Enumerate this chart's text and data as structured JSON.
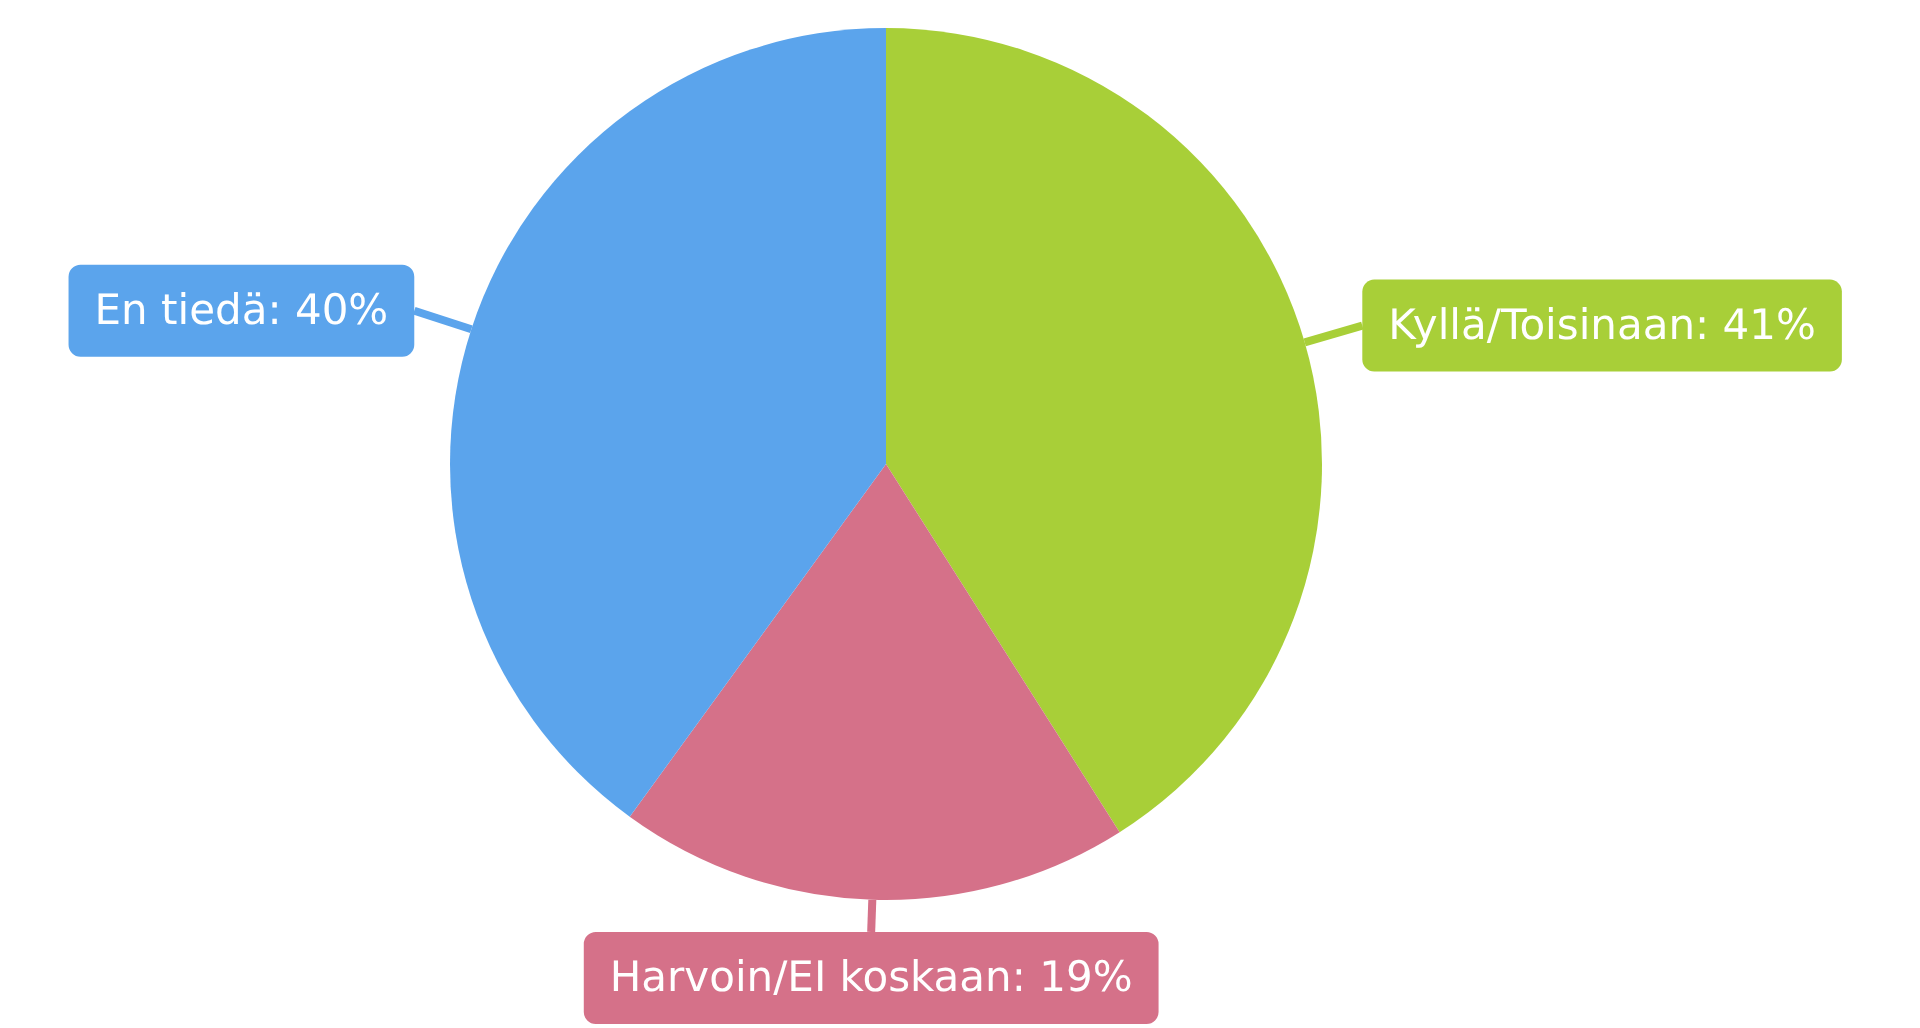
{
  "chart_data": {
    "type": "pie",
    "categories": [
      "Kyllä/Toisinaan",
      "Harvoin/EI koskaan",
      "En tiedä"
    ],
    "values": [
      41,
      19,
      40
    ],
    "colors": [
      "#a8cf38",
      "#d57189",
      "#5ba4ec"
    ],
    "value_labels": [
      "41%",
      "19%",
      "40%"
    ]
  }
}
